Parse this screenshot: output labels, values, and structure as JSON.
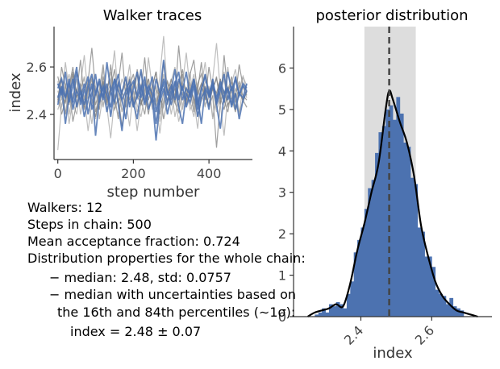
{
  "chart_data": [
    {
      "type": "line",
      "title": "Walker traces",
      "xlabel": "step number",
      "ylabel": "index",
      "xlim": [
        -10,
        515
      ],
      "ylim": [
        2.21,
        2.77
      ],
      "xticks": [
        0,
        200,
        400
      ],
      "yticks": [
        2.4,
        2.6
      ],
      "xtick_labels": [
        "0",
        "200",
        "400"
      ],
      "ytick_labels": [
        "2.4",
        "2.6"
      ],
      "grid": false,
      "n_walkers": 12,
      "n_steps": 500,
      "walker_colors": [
        "#4c72b0",
        "#7f7f7f",
        "#a8a8a8"
      ],
      "series": [
        {
          "values": [
            2.53,
            2.48,
            2.58,
            2.45,
            2.52,
            2.6,
            2.44,
            2.5,
            2.56,
            2.42,
            2.49,
            2.55,
            2.47,
            2.53,
            2.39,
            2.51,
            2.57,
            2.46,
            2.5,
            2.54,
            2.43,
            2.48,
            2.59,
            2.45,
            2.52,
            2.49,
            2.36,
            2.47,
            2.55,
            2.5,
            2.44,
            2.53,
            2.58,
            2.46,
            2.51,
            2.48,
            2.55,
            2.42,
            2.5,
            2.57,
            2.47,
            2.52,
            2.45,
            2.54,
            2.49,
            2.51,
            2.44,
            2.56,
            2.48,
            2.52,
            2.5
          ]
        },
        {
          "values": [
            2.46,
            2.55,
            2.4,
            2.51,
            2.58,
            2.47,
            2.53,
            2.42,
            2.49,
            2.56,
            2.44,
            2.5,
            2.61,
            2.45,
            2.52,
            2.48,
            2.38,
            2.5,
            2.55,
            2.46,
            2.53,
            2.57,
            2.44,
            2.49,
            2.4,
            2.51,
            2.58,
            2.47,
            2.43,
            2.54,
            2.49,
            2.45,
            2.52,
            2.59,
            2.46,
            2.5,
            2.41,
            2.53,
            2.57,
            2.48,
            2.44,
            2.51,
            2.55,
            2.47,
            2.42,
            2.5,
            2.56,
            2.45,
            2.52,
            2.48,
            2.46
          ]
        },
        {
          "values": [
            2.5,
            2.43,
            2.52,
            2.57,
            2.45,
            2.4,
            2.51,
            2.55,
            2.47,
            2.36,
            2.48,
            2.53,
            2.44,
            2.5,
            2.58,
            2.46,
            2.52,
            2.41,
            2.49,
            2.56,
            2.47,
            2.33,
            2.45,
            2.51,
            2.55,
            2.43,
            2.5,
            2.48,
            2.57,
            2.44,
            2.52,
            2.39,
            2.47,
            2.53,
            2.49,
            2.58,
            2.42,
            2.5,
            2.46,
            2.54,
            2.51,
            2.38,
            2.48,
            2.55,
            2.45,
            2.6,
            2.47,
            2.43,
            2.51,
            2.56,
            2.49
          ]
        },
        {
          "values": [
            2.44,
            2.51,
            2.47,
            2.55,
            2.42,
            2.5,
            2.46,
            2.53,
            2.4,
            2.49,
            2.57,
            2.45,
            2.52,
            2.48,
            2.43,
            2.55,
            2.5,
            2.46,
            2.38,
            2.51,
            2.54,
            2.47,
            2.52,
            2.44,
            2.49,
            2.56,
            2.41,
            2.48,
            2.53,
            2.45,
            2.5,
            2.59,
            2.46,
            2.52,
            2.43,
            2.49,
            2.55,
            2.47,
            2.36,
            2.51,
            2.48,
            2.54,
            2.44,
            2.5,
            2.57,
            2.46,
            2.52,
            2.42,
            2.49,
            2.47,
            2.53
          ]
        },
        {
          "values": [
            2.56,
            2.49,
            2.45,
            2.52,
            2.6,
            2.47,
            2.53,
            2.44,
            2.5,
            2.55,
            2.41,
            2.48,
            2.54,
            2.46,
            2.51,
            2.59,
            2.45,
            2.5,
            2.43,
            2.52,
            2.57,
            2.48,
            2.44,
            2.5,
            2.55,
            2.47,
            2.52,
            2.4,
            2.49,
            2.54,
            2.46,
            2.51,
            2.43,
            2.57,
            2.48,
            2.53,
            2.45,
            2.5,
            2.62,
            2.47,
            2.44,
            2.52,
            2.49,
            2.55,
            2.46,
            2.41,
            2.51,
            2.48,
            2.54,
            2.45,
            2.5
          ]
        },
        {
          "values": [
            2.42,
            2.47,
            2.53,
            2.4,
            2.49,
            2.44,
            2.5,
            2.56,
            2.46,
            2.52,
            2.38,
            2.48,
            2.43,
            2.51,
            2.55,
            2.45,
            2.4,
            2.49,
            2.53,
            2.44,
            2.5,
            2.41,
            2.47,
            2.55,
            2.43,
            2.49,
            2.52,
            2.37,
            2.46,
            2.51,
            2.44,
            2.48,
            2.54,
            2.42,
            2.5,
            2.45,
            2.39,
            2.49,
            2.53,
            2.44,
            2.47,
            2.51,
            2.41,
            2.48,
            2.55,
            2.43,
            2.5,
            2.46,
            2.4,
            2.52,
            2.47
          ]
        },
        {
          "values": [
            2.51,
            2.55,
            2.47,
            2.53,
            2.45,
            2.58,
            2.5,
            2.44,
            2.52,
            2.57,
            2.48,
            2.54,
            2.46,
            2.62,
            2.5,
            2.45,
            2.53,
            2.49,
            2.56,
            2.43,
            2.51,
            2.58,
            2.47,
            2.53,
            2.5,
            2.45,
            2.55,
            2.49,
            2.63,
            2.48,
            2.52,
            2.46,
            2.55,
            2.5,
            2.58,
            2.47,
            2.53,
            2.44,
            2.51,
            2.56,
            2.49,
            2.54,
            2.47,
            2.52,
            2.45,
            2.58,
            2.5,
            2.55,
            2.48,
            2.53,
            2.51
          ]
        },
        {
          "values": [
            2.48,
            2.4,
            2.46,
            2.51,
            2.37,
            2.45,
            2.49,
            2.43,
            2.52,
            2.46,
            2.39,
            2.48,
            2.54,
            2.44,
            2.5,
            2.42,
            2.47,
            2.35,
            2.45,
            2.51,
            2.43,
            2.49,
            2.46,
            2.4,
            2.52,
            2.47,
            2.44,
            2.5,
            2.38,
            2.46,
            2.53,
            2.45,
            2.41,
            2.49,
            2.44,
            2.51,
            2.47,
            2.39,
            2.46,
            2.52,
            2.43,
            2.48,
            2.26,
            2.45,
            2.5,
            2.44,
            2.47,
            2.41,
            2.49,
            2.46,
            2.43
          ]
        },
        {
          "values": [
            2.54,
            2.46,
            2.62,
            2.5,
            2.57,
            2.45,
            2.52,
            2.65,
            2.48,
            2.55,
            2.51,
            2.44,
            2.59,
            2.49,
            2.53,
            2.67,
            2.47,
            2.55,
            2.5,
            2.61,
            2.46,
            2.52,
            2.58,
            2.48,
            2.64,
            2.51,
            2.45,
            2.56,
            2.73,
            2.49,
            2.54,
            2.6,
            2.47,
            2.53,
            2.66,
            2.5,
            2.57,
            2.45,
            2.52,
            2.62,
            2.48,
            2.55,
            2.7,
            2.5,
            2.58,
            2.46,
            2.53,
            2.59,
            2.49,
            2.56,
            2.52
          ]
        },
        {
          "values": [
            2.47,
            2.52,
            2.36,
            2.48,
            2.55,
            2.43,
            2.5,
            2.39,
            2.46,
            2.53,
            2.31,
            2.47,
            2.51,
            2.41,
            2.49,
            2.55,
            2.44,
            2.33,
            2.48,
            2.52,
            2.45,
            2.38,
            2.5,
            2.56,
            2.42,
            2.47,
            2.29,
            2.45,
            2.51,
            2.4,
            2.48,
            2.54,
            2.43,
            2.36,
            2.49,
            2.45,
            2.52,
            2.39,
            2.47,
            2.5,
            2.42,
            2.55,
            2.44,
            2.34,
            2.48,
            2.51,
            2.43,
            2.49,
            2.38,
            2.46,
            2.5
          ]
        },
        {
          "values": [
            2.45,
            2.6,
            2.52,
            2.44,
            2.57,
            2.49,
            2.63,
            2.46,
            2.54,
            2.68,
            2.5,
            2.42,
            2.56,
            2.48,
            2.61,
            2.45,
            2.53,
            2.66,
            2.47,
            2.55,
            2.43,
            2.59,
            2.5,
            2.64,
            2.46,
            2.52,
            2.58,
            2.44,
            2.62,
            2.49,
            2.55,
            2.47,
            2.69,
            2.51,
            2.45,
            2.57,
            2.63,
            2.48,
            2.53,
            2.46,
            2.6,
            2.5,
            2.56,
            2.44,
            2.65,
            2.49,
            2.54,
            2.47,
            2.61,
            2.52,
            2.48
          ]
        },
        {
          "values": [
            2.25,
            2.44,
            2.5,
            2.36,
            2.47,
            2.55,
            2.4,
            2.48,
            2.33,
            2.45,
            2.52,
            2.38,
            2.49,
            2.43,
            2.3,
            2.47,
            2.53,
            2.41,
            2.46,
            2.35,
            2.5,
            2.44,
            2.39,
            2.48,
            2.54,
            2.42,
            2.47,
            2.32,
            2.45,
            2.51,
            2.4,
            2.48,
            2.37,
            2.44,
            2.5,
            2.42,
            2.46,
            2.34,
            2.49,
            2.43,
            2.52,
            2.39,
            2.47,
            2.44,
            2.31,
            2.48,
            2.45,
            2.51,
            2.41,
            2.46,
            2.43
          ]
        }
      ]
    },
    {
      "type": "bar",
      "title": "posterior distribution",
      "xlabel": "index",
      "xlim": [
        2.21,
        2.77
      ],
      "ylim": [
        0,
        7
      ],
      "xticks": [
        2.4,
        2.6
      ],
      "yticks": [
        0,
        1,
        2,
        3,
        4,
        5,
        6
      ],
      "xtick_labels": [
        "2.4",
        "2.6"
      ],
      "ytick_labels": [
        "0",
        "1",
        "2",
        "3",
        "4",
        "5",
        "6"
      ],
      "grid": false,
      "hist_color": "#4c72b0",
      "kde_color": "#000000",
      "band_color": "#dddddd",
      "median_color": "#444444",
      "median": 2.48,
      "band": [
        2.41,
        2.555
      ],
      "bin_edges_start": 2.27,
      "bin_width": 0.01,
      "densities": [
        0.05,
        0.1,
        0.2,
        0.1,
        0.3,
        0.25,
        0.35,
        0.3,
        0.2,
        0.55,
        0.85,
        1.55,
        1.85,
        2.15,
        2.6,
        3.1,
        3.3,
        3.95,
        4.45,
        4.6,
        5.0,
        5.1,
        4.75,
        5.3,
        4.9,
        4.2,
        4.1,
        3.35,
        3.2,
        2.15,
        2.05,
        1.45,
        1.45,
        1.2,
        0.65,
        0.55,
        0.5,
        0.3,
        0.45,
        0.25,
        0.2,
        0.15
      ],
      "kde_x": [
        2.25,
        2.27,
        2.29,
        2.31,
        2.33,
        2.35,
        2.37,
        2.39,
        2.41,
        2.43,
        2.45,
        2.47,
        2.48,
        2.49,
        2.51,
        2.53,
        2.55,
        2.57,
        2.59,
        2.61,
        2.63,
        2.65,
        2.67,
        2.69,
        2.71,
        2.73
      ],
      "kde_y": [
        0.0,
        0.1,
        0.15,
        0.2,
        0.3,
        0.25,
        0.8,
        1.6,
        2.25,
        3.0,
        3.7,
        5.0,
        5.45,
        5.25,
        4.7,
        4.2,
        3.4,
        2.2,
        1.45,
        0.85,
        0.5,
        0.3,
        0.15,
        0.1,
        0.05,
        0.0
      ]
    }
  ],
  "info": {
    "walkers": "Walkers: 12",
    "steps": "Steps in chain: 500",
    "acceptance": "Mean acceptance fraction: 0.724",
    "distribution": "Distribution properties for the whole chain:",
    "median_std": "− median: 2.48, std: 0.0757",
    "uncert_1": "− median with uncertainties based on",
    "uncert_2": "the 16th and 84th percentiles (∼1σ):",
    "index_result": "index = 2.48 ± 0.07"
  }
}
